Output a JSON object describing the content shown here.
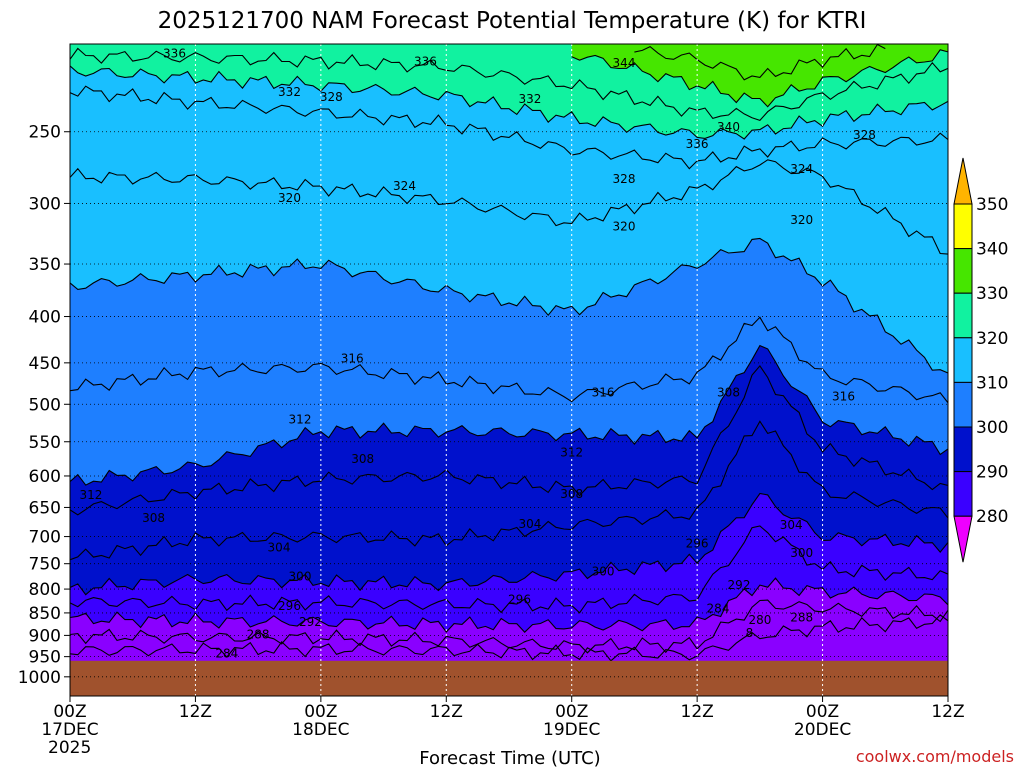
{
  "title": "2025121700 NAM Forecast Potential Temperature (K) for KTRI",
  "credit": "coolwx.com/models",
  "chart_data": {
    "type": "contour",
    "xlabel": "Forecast Time (UTC)",
    "ylabel": "",
    "y_scale": "log-pressure",
    "ylim": [
      1050,
      200
    ],
    "yticks": [
      250,
      300,
      350,
      400,
      450,
      500,
      550,
      600,
      650,
      700,
      750,
      800,
      850,
      900,
      950,
      1000
    ],
    "xlim_hours": [
      0,
      84
    ],
    "xticks": [
      {
        "h": 0,
        "lines": [
          "00Z",
          "17DEC",
          "2025"
        ]
      },
      {
        "h": 12,
        "lines": [
          "12Z"
        ]
      },
      {
        "h": 24,
        "lines": [
          "00Z",
          "18DEC"
        ]
      },
      {
        "h": 36,
        "lines": [
          "12Z"
        ]
      },
      {
        "h": 48,
        "lines": [
          "00Z",
          "19DEC"
        ]
      },
      {
        "h": 60,
        "lines": [
          "12Z"
        ]
      },
      {
        "h": 72,
        "lines": [
          "00Z",
          "20DEC"
        ]
      },
      {
        "h": 84,
        "lines": [
          "12Z"
        ]
      }
    ],
    "grid": true,
    "ground_pressure": 960,
    "colorbar": {
      "levels": [
        280,
        290,
        300,
        310,
        320,
        330,
        340,
        350
      ],
      "colors": [
        "#ee00ff",
        "#8a00ff",
        "#3a00ff",
        "#0011cc",
        "#1e7fff",
        "#19bfff",
        "#11f2a0",
        "#46e600",
        "#ffff00",
        "#ffb400"
      ],
      "extend": "both"
    },
    "isotherm_profiles": [
      {
        "theta": 284,
        "values": [
          [
            0,
            936
          ],
          [
            12,
            933
          ],
          [
            24,
            932
          ],
          [
            36,
            935
          ],
          [
            48,
            942
          ],
          [
            60,
            945
          ],
          [
            66,
            900
          ],
          [
            72,
            882
          ],
          [
            84,
            868
          ]
        ]
      },
      {
        "theta": 288,
        "values": [
          [
            0,
            900
          ],
          [
            12,
            905
          ],
          [
            24,
            905
          ],
          [
            36,
            912
          ],
          [
            48,
            925
          ],
          [
            60,
            920
          ],
          [
            66,
            830
          ],
          [
            72,
            840
          ],
          [
            84,
            855
          ]
        ]
      },
      {
        "theta": 292,
        "values": [
          [
            0,
            862
          ],
          [
            12,
            868
          ],
          [
            24,
            870
          ],
          [
            36,
            875
          ],
          [
            48,
            878
          ],
          [
            60,
            875
          ],
          [
            66,
            790
          ],
          [
            72,
            805
          ],
          [
            84,
            820
          ]
        ]
      },
      {
        "theta": 296,
        "values": [
          [
            0,
            825
          ],
          [
            12,
            830
          ],
          [
            24,
            828
          ],
          [
            36,
            832
          ],
          [
            48,
            835
          ],
          [
            60,
            815
          ],
          [
            66,
            680
          ],
          [
            72,
            760
          ],
          [
            84,
            775
          ]
        ]
      },
      {
        "theta": 300,
        "values": [
          [
            0,
            800
          ],
          [
            12,
            780
          ],
          [
            24,
            785
          ],
          [
            36,
            790
          ],
          [
            48,
            770
          ],
          [
            60,
            745
          ],
          [
            66,
            630
          ],
          [
            72,
            700
          ],
          [
            84,
            715
          ]
        ]
      },
      {
        "theta": 304,
        "values": [
          [
            0,
            740
          ],
          [
            12,
            705
          ],
          [
            24,
            700
          ],
          [
            36,
            705
          ],
          [
            48,
            680
          ],
          [
            60,
            660
          ],
          [
            66,
            520
          ],
          [
            72,
            625
          ],
          [
            84,
            660
          ]
        ]
      },
      {
        "theta": 308,
        "values": [
          [
            0,
            655
          ],
          [
            12,
            625
          ],
          [
            24,
            605
          ],
          [
            36,
            600
          ],
          [
            48,
            620
          ],
          [
            60,
            605
          ],
          [
            66,
            455
          ],
          [
            72,
            560
          ],
          [
            84,
            620
          ]
        ]
      },
      {
        "theta": 312,
        "values": [
          [
            0,
            610
          ],
          [
            12,
            585
          ],
          [
            24,
            535
          ],
          [
            36,
            535
          ],
          [
            48,
            540
          ],
          [
            60,
            545
          ],
          [
            66,
            430
          ],
          [
            72,
            520
          ],
          [
            84,
            560
          ]
        ]
      },
      {
        "theta": 316,
        "values": [
          [
            0,
            480
          ],
          [
            12,
            460
          ],
          [
            24,
            455
          ],
          [
            36,
            470
          ],
          [
            48,
            490
          ],
          [
            60,
            465
          ],
          [
            66,
            400
          ],
          [
            72,
            465
          ],
          [
            84,
            495
          ]
        ]
      },
      {
        "theta": 320,
        "values": [
          [
            0,
            370
          ],
          [
            12,
            360
          ],
          [
            24,
            350
          ],
          [
            36,
            375
          ],
          [
            48,
            395
          ],
          [
            60,
            350
          ],
          [
            66,
            330
          ],
          [
            72,
            365
          ],
          [
            84,
            465
          ]
        ]
      },
      {
        "theta": 324,
        "values": [
          [
            0,
            280
          ],
          [
            12,
            282
          ],
          [
            24,
            288
          ],
          [
            36,
            298
          ],
          [
            48,
            315
          ],
          [
            60,
            290
          ],
          [
            66,
            270
          ],
          [
            72,
            280
          ],
          [
            84,
            340
          ]
        ]
      },
      {
        "theta": 328,
        "values": [
          [
            0,
            225
          ],
          [
            12,
            232
          ],
          [
            24,
            238
          ],
          [
            36,
            245
          ],
          [
            48,
            262
          ],
          [
            60,
            270
          ],
          [
            66,
            262
          ],
          [
            72,
            258
          ],
          [
            84,
            255
          ]
        ]
      },
      {
        "theta": 332,
        "values": [
          [
            0,
            214
          ],
          [
            12,
            218
          ],
          [
            24,
            222
          ],
          [
            36,
            228
          ],
          [
            48,
            242
          ],
          [
            60,
            252
          ],
          [
            66,
            250
          ],
          [
            72,
            242
          ],
          [
            84,
            232
          ]
        ]
      },
      {
        "theta": 336,
        "values": [
          [
            0,
            206
          ],
          [
            12,
            207
          ],
          [
            24,
            209
          ],
          [
            36,
            212
          ],
          [
            48,
            222
          ],
          [
            60,
            238
          ],
          [
            66,
            240
          ],
          [
            72,
            228
          ],
          [
            84,
            212
          ]
        ]
      },
      {
        "theta": 340,
        "values": [
          [
            48,
            205
          ],
          [
            60,
            222
          ],
          [
            66,
            232
          ],
          [
            72,
            220
          ],
          [
            84,
            205
          ]
        ]
      },
      {
        "theta": 344,
        "values": [
          [
            54,
            203
          ],
          [
            60,
            208
          ],
          [
            66,
            218
          ],
          [
            72,
            208
          ],
          [
            78,
            203
          ]
        ]
      }
    ],
    "contour_labels": [
      {
        "text": "336",
        "h": 10,
        "p": 205
      },
      {
        "text": "336",
        "h": 34,
        "p": 209
      },
      {
        "text": "344",
        "h": 53,
        "p": 210
      },
      {
        "text": "332",
        "h": 21,
        "p": 226
      },
      {
        "text": "328",
        "h": 25,
        "p": 229
      },
      {
        "text": "332",
        "h": 44,
        "p": 230
      },
      {
        "text": "340",
        "h": 63,
        "p": 247
      },
      {
        "text": "336",
        "h": 60,
        "p": 258
      },
      {
        "text": "328",
        "h": 76,
        "p": 252
      },
      {
        "text": "324",
        "h": 70,
        "p": 275
      },
      {
        "text": "328",
        "h": 53,
        "p": 282
      },
      {
        "text": "324",
        "h": 32,
        "p": 287
      },
      {
        "text": "320",
        "h": 21,
        "p": 296
      },
      {
        "text": "320",
        "h": 53,
        "p": 318
      },
      {
        "text": "320",
        "h": 70,
        "p": 313
      },
      {
        "text": "316",
        "h": 27,
        "p": 445
      },
      {
        "text": "316",
        "h": 51,
        "p": 485
      },
      {
        "text": "308",
        "h": 63,
        "p": 485
      },
      {
        "text": "316",
        "h": 74,
        "p": 490
      },
      {
        "text": "312",
        "h": 22,
        "p": 520
      },
      {
        "text": "312",
        "h": 48,
        "p": 565
      },
      {
        "text": "308",
        "h": 28,
        "p": 575
      },
      {
        "text": "308",
        "h": 48,
        "p": 628
      },
      {
        "text": "312",
        "h": 2,
        "p": 630
      },
      {
        "text": "308",
        "h": 8,
        "p": 668
      },
      {
        "text": "304",
        "h": 44,
        "p": 678
      },
      {
        "text": "304",
        "h": 69,
        "p": 680
      },
      {
        "text": "296",
        "h": 60,
        "p": 712
      },
      {
        "text": "304",
        "h": 20,
        "p": 720
      },
      {
        "text": "300",
        "h": 70,
        "p": 730
      },
      {
        "text": "300",
        "h": 51,
        "p": 765
      },
      {
        "text": "300",
        "h": 22,
        "p": 775
      },
      {
        "text": "292",
        "h": 64,
        "p": 792
      },
      {
        "text": "296",
        "h": 43,
        "p": 822
      },
      {
        "text": "296",
        "h": 21,
        "p": 835
      },
      {
        "text": "284",
        "h": 62,
        "p": 840
      },
      {
        "text": "288",
        "h": 70,
        "p": 860
      },
      {
        "text": "280",
        "h": 66,
        "p": 865
      },
      {
        "text": "292",
        "h": 23,
        "p": 870
      },
      {
        "text": "288",
        "h": 18,
        "p": 898
      },
      {
        "text": "284",
        "h": 15,
        "p": 943
      },
      {
        "text": "8",
        "h": 65,
        "p": 895
      }
    ]
  }
}
